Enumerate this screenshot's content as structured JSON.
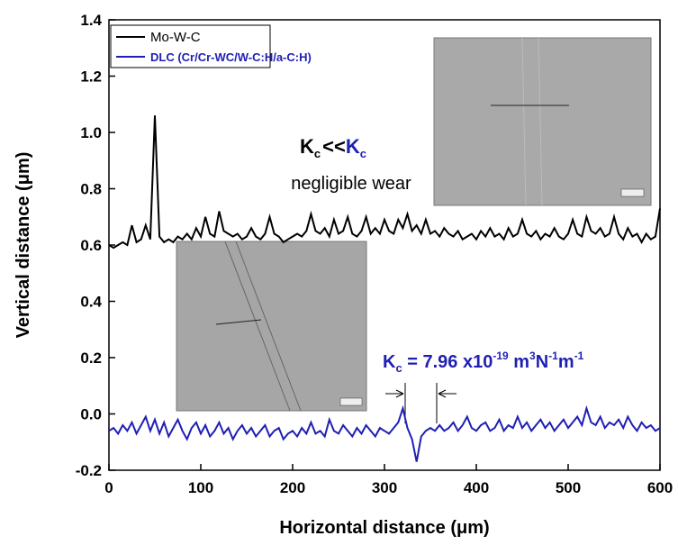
{
  "chart_data": {
    "type": "line",
    "xlabel": "Horizontal distance (μm)",
    "ylabel": "Vertical distance (μm)",
    "x": [
      0,
      5,
      10,
      15,
      20,
      25,
      30,
      35,
      40,
      45,
      50,
      55,
      60,
      65,
      70,
      75,
      80,
      85,
      90,
      95,
      100,
      105,
      110,
      115,
      120,
      125,
      130,
      135,
      140,
      145,
      150,
      155,
      160,
      165,
      170,
      175,
      180,
      185,
      190,
      195,
      200,
      205,
      210,
      215,
      220,
      225,
      230,
      235,
      240,
      245,
      250,
      255,
      260,
      265,
      270,
      275,
      280,
      285,
      290,
      295,
      300,
      305,
      310,
      315,
      320,
      325,
      330,
      335,
      340,
      345,
      350,
      355,
      360,
      365,
      370,
      375,
      380,
      385,
      390,
      395,
      400,
      405,
      410,
      415,
      420,
      425,
      430,
      435,
      440,
      445,
      450,
      455,
      460,
      465,
      470,
      475,
      480,
      485,
      490,
      495,
      500,
      505,
      510,
      515,
      520,
      525,
      530,
      535,
      540,
      545,
      550,
      555,
      560,
      565,
      570,
      575,
      580,
      585,
      590,
      595,
      600
    ],
    "series": [
      {
        "name": "Mo-W-C",
        "color": "#000000",
        "values": [
          0.6,
          0.59,
          0.6,
          0.61,
          0.6,
          0.67,
          0.61,
          0.62,
          0.67,
          0.62,
          1.06,
          0.63,
          0.61,
          0.62,
          0.61,
          0.63,
          0.62,
          0.64,
          0.62,
          0.66,
          0.63,
          0.7,
          0.64,
          0.63,
          0.72,
          0.65,
          0.64,
          0.63,
          0.64,
          0.62,
          0.63,
          0.66,
          0.63,
          0.62,
          0.64,
          0.7,
          0.64,
          0.63,
          0.61,
          0.62,
          0.63,
          0.64,
          0.63,
          0.65,
          0.71,
          0.65,
          0.64,
          0.66,
          0.63,
          0.69,
          0.64,
          0.65,
          0.7,
          0.64,
          0.63,
          0.65,
          0.7,
          0.64,
          0.66,
          0.64,
          0.69,
          0.65,
          0.64,
          0.69,
          0.66,
          0.71,
          0.65,
          0.67,
          0.64,
          0.69,
          0.64,
          0.65,
          0.63,
          0.66,
          0.64,
          0.63,
          0.65,
          0.62,
          0.63,
          0.64,
          0.62,
          0.65,
          0.63,
          0.66,
          0.63,
          0.64,
          0.62,
          0.66,
          0.63,
          0.64,
          0.69,
          0.64,
          0.63,
          0.65,
          0.62,
          0.64,
          0.63,
          0.66,
          0.63,
          0.62,
          0.64,
          0.69,
          0.64,
          0.63,
          0.7,
          0.65,
          0.64,
          0.66,
          0.63,
          0.64,
          0.7,
          0.64,
          0.62,
          0.66,
          0.63,
          0.64,
          0.61,
          0.64,
          0.62,
          0.63,
          0.73
        ]
      },
      {
        "name": "DLC (Cr/Cr-WC/W-C:H/a-C:H)",
        "color": "#1f1fb4",
        "values": [
          -0.06,
          -0.05,
          -0.07,
          -0.04,
          -0.06,
          -0.03,
          -0.07,
          -0.04,
          -0.01,
          -0.06,
          -0.02,
          -0.07,
          -0.03,
          -0.08,
          -0.05,
          -0.02,
          -0.06,
          -0.09,
          -0.05,
          -0.03,
          -0.07,
          -0.04,
          -0.08,
          -0.06,
          -0.03,
          -0.07,
          -0.05,
          -0.09,
          -0.06,
          -0.04,
          -0.07,
          -0.05,
          -0.08,
          -0.06,
          -0.04,
          -0.08,
          -0.06,
          -0.05,
          -0.09,
          -0.07,
          -0.06,
          -0.08,
          -0.05,
          -0.07,
          -0.03,
          -0.07,
          -0.06,
          -0.08,
          -0.02,
          -0.06,
          -0.07,
          -0.04,
          -0.06,
          -0.08,
          -0.05,
          -0.07,
          -0.04,
          -0.06,
          -0.08,
          -0.05,
          -0.06,
          -0.07,
          -0.05,
          -0.03,
          0.02,
          -0.05,
          -0.09,
          -0.17,
          -0.08,
          -0.06,
          -0.05,
          -0.06,
          -0.04,
          -0.06,
          -0.05,
          -0.03,
          -0.06,
          -0.04,
          -0.01,
          -0.05,
          -0.06,
          -0.04,
          -0.03,
          -0.06,
          -0.05,
          -0.02,
          -0.06,
          -0.04,
          -0.05,
          -0.01,
          -0.05,
          -0.03,
          -0.06,
          -0.04,
          -0.02,
          -0.05,
          -0.03,
          -0.06,
          -0.04,
          -0.02,
          -0.05,
          -0.03,
          -0.01,
          -0.04,
          0.02,
          -0.03,
          -0.04,
          -0.01,
          -0.05,
          -0.03,
          -0.04,
          -0.02,
          -0.05,
          -0.01,
          -0.04,
          -0.06,
          -0.03,
          -0.05,
          -0.04,
          -0.06,
          -0.05
        ]
      }
    ],
    "xlim": [
      0,
      600
    ],
    "xticks": [
      0,
      100,
      200,
      300,
      400,
      500,
      600
    ],
    "ylim": [
      -0.2,
      1.4
    ],
    "yticks": [
      -0.2,
      {
        "value": 0,
        "label": "0.0"
      },
      0.2,
      0.4,
      0.6,
      0.8,
      {
        "value": 1,
        "label": "1.0"
      },
      1.2,
      1.4
    ],
    "legend": "upper left",
    "annotations": {
      "ratio": {
        "k1": "K",
        "sub1": "c",
        "op": "<<",
        "k2": "K",
        "sub2": "c"
      },
      "wear": "negligible wear",
      "kc": {
        "k": "K",
        "sub": "c",
        "eq": " = 7.96 x10",
        "exp": "-19",
        "u1": " m",
        "e1": "3",
        "u2": "N",
        "e2": "-1",
        "u3": "m",
        "e3": "-1"
      }
    }
  }
}
